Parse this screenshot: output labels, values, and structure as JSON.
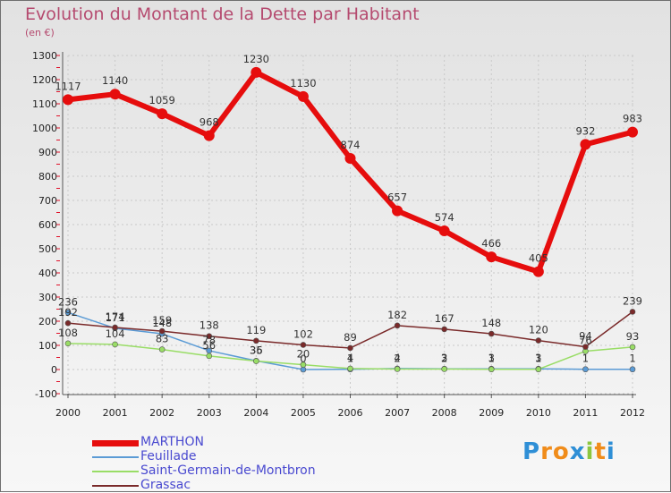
{
  "title": "Evolution du Montant de la Dette par Habitant",
  "unit": "(en €)",
  "logo": {
    "text": "Proxiti",
    "letters": [
      "P",
      "r",
      "o",
      "x",
      "i",
      "t",
      "i"
    ],
    "colors": [
      "#2f8fd6",
      "#f08c1a",
      "#f08c1a",
      "#2f8fd6",
      "#8cc63f",
      "#f08c1a",
      "#2f8fd6"
    ]
  },
  "colors": {
    "grid": "#c9c9c9",
    "axis": "#555555",
    "tick_red": "#e0122a"
  },
  "chart_data": {
    "type": "line",
    "x": [
      "2000",
      "2001",
      "2002",
      "2003",
      "2004",
      "2005",
      "2006",
      "2007",
      "2008",
      "2009",
      "2010",
      "2011",
      "2012"
    ],
    "ylim": [
      -100,
      1300
    ],
    "yticks": [
      -100,
      0,
      100,
      200,
      300,
      400,
      500,
      600,
      700,
      800,
      900,
      1000,
      1100,
      1200,
      1300
    ],
    "grid": true,
    "legend_position": "bottom-left",
    "series": [
      {
        "name": "MARTHON",
        "color": "#e60d0d",
        "width": 6,
        "marker_r": 6,
        "values": [
          1117,
          1140,
          1059,
          968,
          1230,
          1130,
          874,
          657,
          574,
          466,
          405,
          932,
          983
        ],
        "labels": [
          "1117",
          "1140",
          "1059",
          "968",
          "1230",
          "1130",
          "874",
          "657",
          "574",
          "466",
          "405",
          "932",
          "983"
        ]
      },
      {
        "name": "Feuillade",
        "color": "#5b9bd5",
        "width": 1.5,
        "marker_r": 3,
        "values": [
          236,
          171,
          148,
          78,
          36,
          0,
          1,
          4,
          3,
          3,
          3,
          1,
          1
        ],
        "labels": [
          "236",
          "171",
          "148",
          "78",
          "36",
          "0",
          "1",
          "4",
          "3",
          "3",
          "3",
          "1",
          "1"
        ]
      },
      {
        "name": "Saint-Germain-de-Montbron",
        "color": "#99dd66",
        "width": 1.5,
        "marker_r": 3,
        "values": [
          108,
          104,
          83,
          56,
          35,
          20,
          4,
          2,
          2,
          1,
          1,
          76,
          93
        ],
        "labels": [
          "108",
          "104",
          "83",
          "56",
          "35",
          "20",
          "4",
          "2",
          "2",
          "1",
          "1",
          "76",
          "93"
        ]
      },
      {
        "name": "Grassac",
        "color": "#7a2a2a",
        "width": 1.5,
        "marker_r": 3,
        "values": [
          192,
          174,
          159,
          138,
          119,
          102,
          89,
          182,
          167,
          148,
          120,
          94,
          239
        ],
        "labels": [
          "192",
          "174",
          "159",
          "138",
          "119",
          "102",
          "89",
          "182",
          "167",
          "148",
          "120",
          "94",
          "239"
        ]
      }
    ]
  }
}
